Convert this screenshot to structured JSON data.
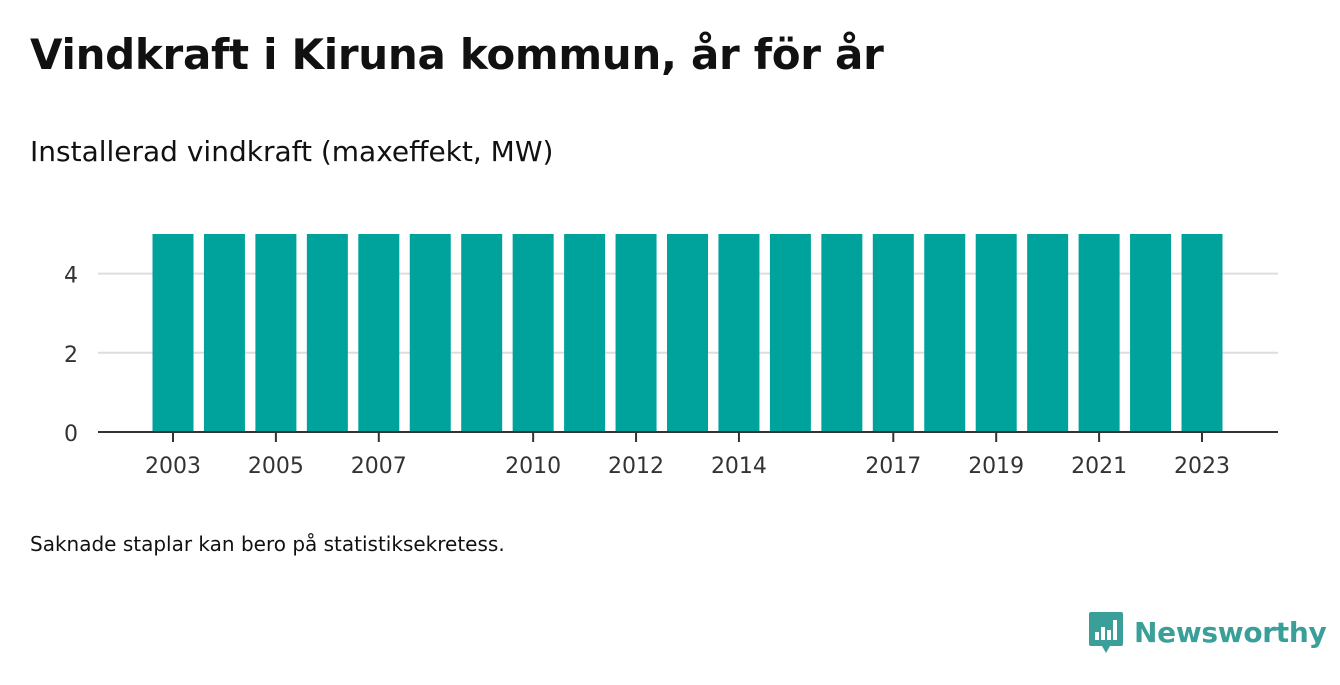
{
  "title": "Vindkraft i Kiruna kommun, år för år",
  "subtitle": "Installerad vindkraft (maxeffekt, MW)",
  "footnote": "Saknade staplar kan bero på statistiksekretess.",
  "brand": {
    "name": "Newsworthy",
    "color": "#3a9f98",
    "icon": "newsworthy-logo-icon"
  },
  "colors": {
    "bar": "#00a39b",
    "axis": "#333333",
    "grid": "#dddddd",
    "text": "#333333"
  },
  "chart_data": {
    "type": "bar",
    "title": "Vindkraft i Kiruna kommun, år för år",
    "subtitle": "Installerad vindkraft (maxeffekt, MW)",
    "xlabel": "",
    "ylabel": "",
    "categories": [
      "2003",
      "2004",
      "2005",
      "2006",
      "2007",
      "2008",
      "2009",
      "2010",
      "2011",
      "2012",
      "2013",
      "2014",
      "2015",
      "2016",
      "2017",
      "2018",
      "2019",
      "2020",
      "2021",
      "2022",
      "2023"
    ],
    "values": [
      5,
      5,
      5,
      5,
      5,
      5,
      5,
      5,
      5,
      5,
      5,
      5,
      5,
      5,
      5,
      5,
      5,
      5,
      5,
      5,
      5
    ],
    "ylim": [
      0,
      5
    ],
    "yticks": [
      0,
      2,
      4
    ],
    "xtick_labels": [
      "2003",
      "2005",
      "2007",
      "2010",
      "2012",
      "2014",
      "2017",
      "2019",
      "2021",
      "2023"
    ],
    "grid": true,
    "legend": "none"
  }
}
